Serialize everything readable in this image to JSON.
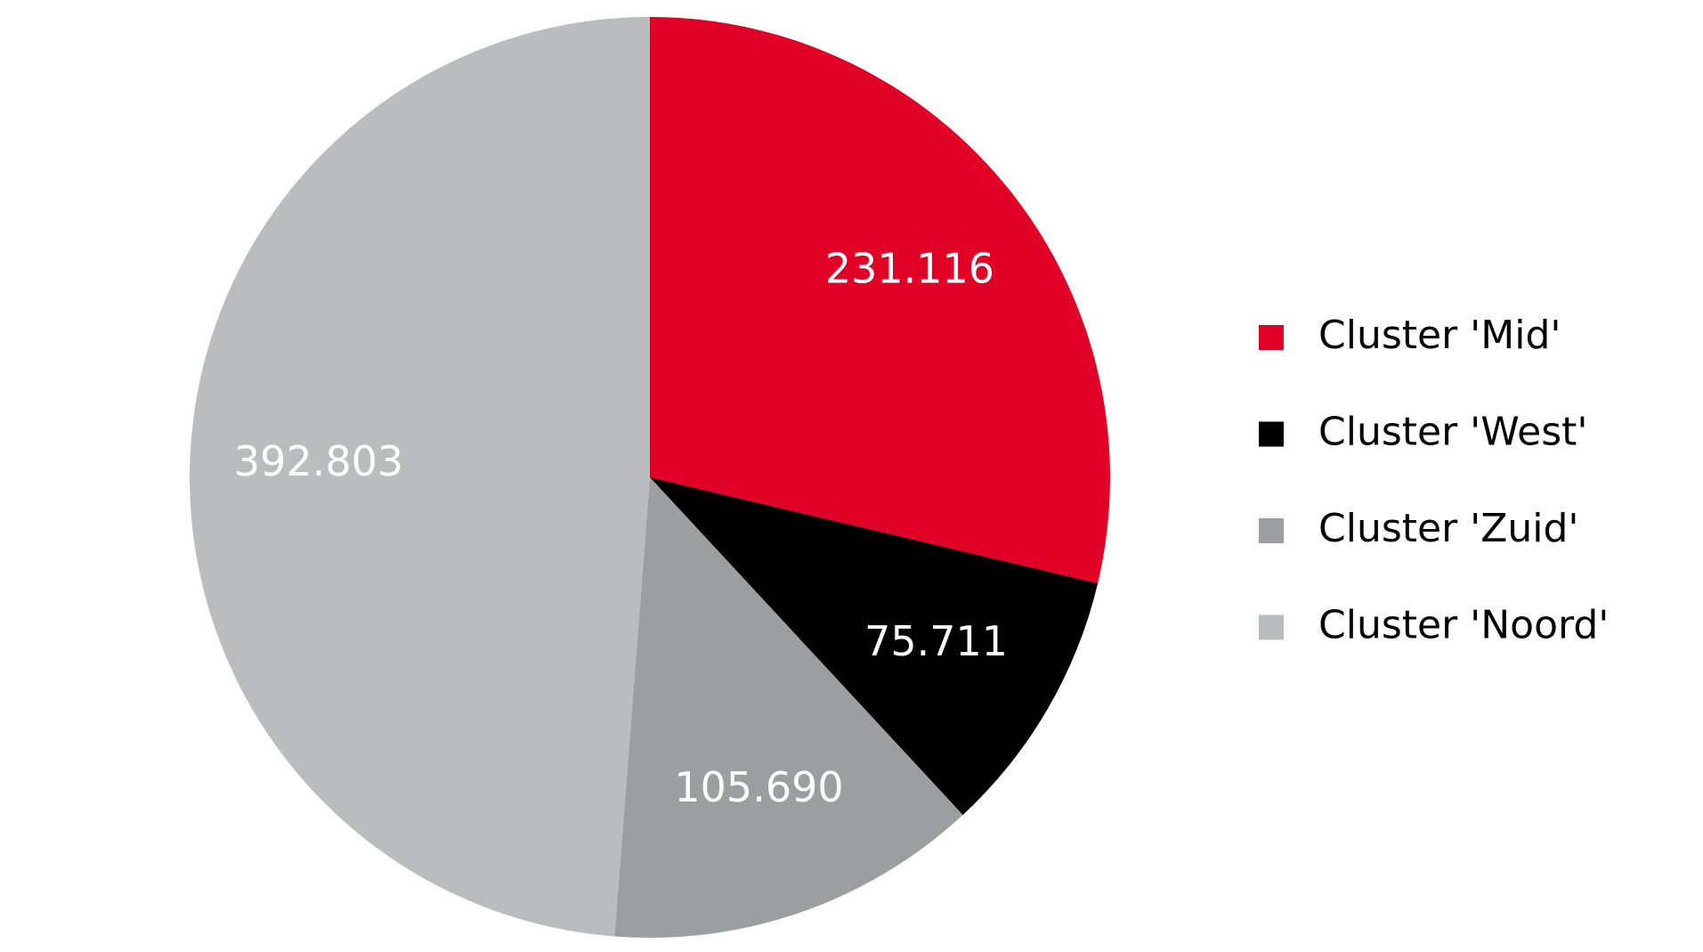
{
  "chart_data": {
    "type": "pie",
    "categories": [
      "Cluster 'Mid'",
      "Cluster 'West'",
      "Cluster 'Zuid'",
      "Cluster 'Noord'"
    ],
    "values": [
      231116,
      75711,
      105690,
      392803
    ],
    "value_labels": [
      "231.116",
      "75.711",
      "105.690",
      "392.803"
    ],
    "colors": [
      "#e10026",
      "#000000",
      "#9d9ea0",
      "#bbbcbe"
    ],
    "legend": "right"
  }
}
